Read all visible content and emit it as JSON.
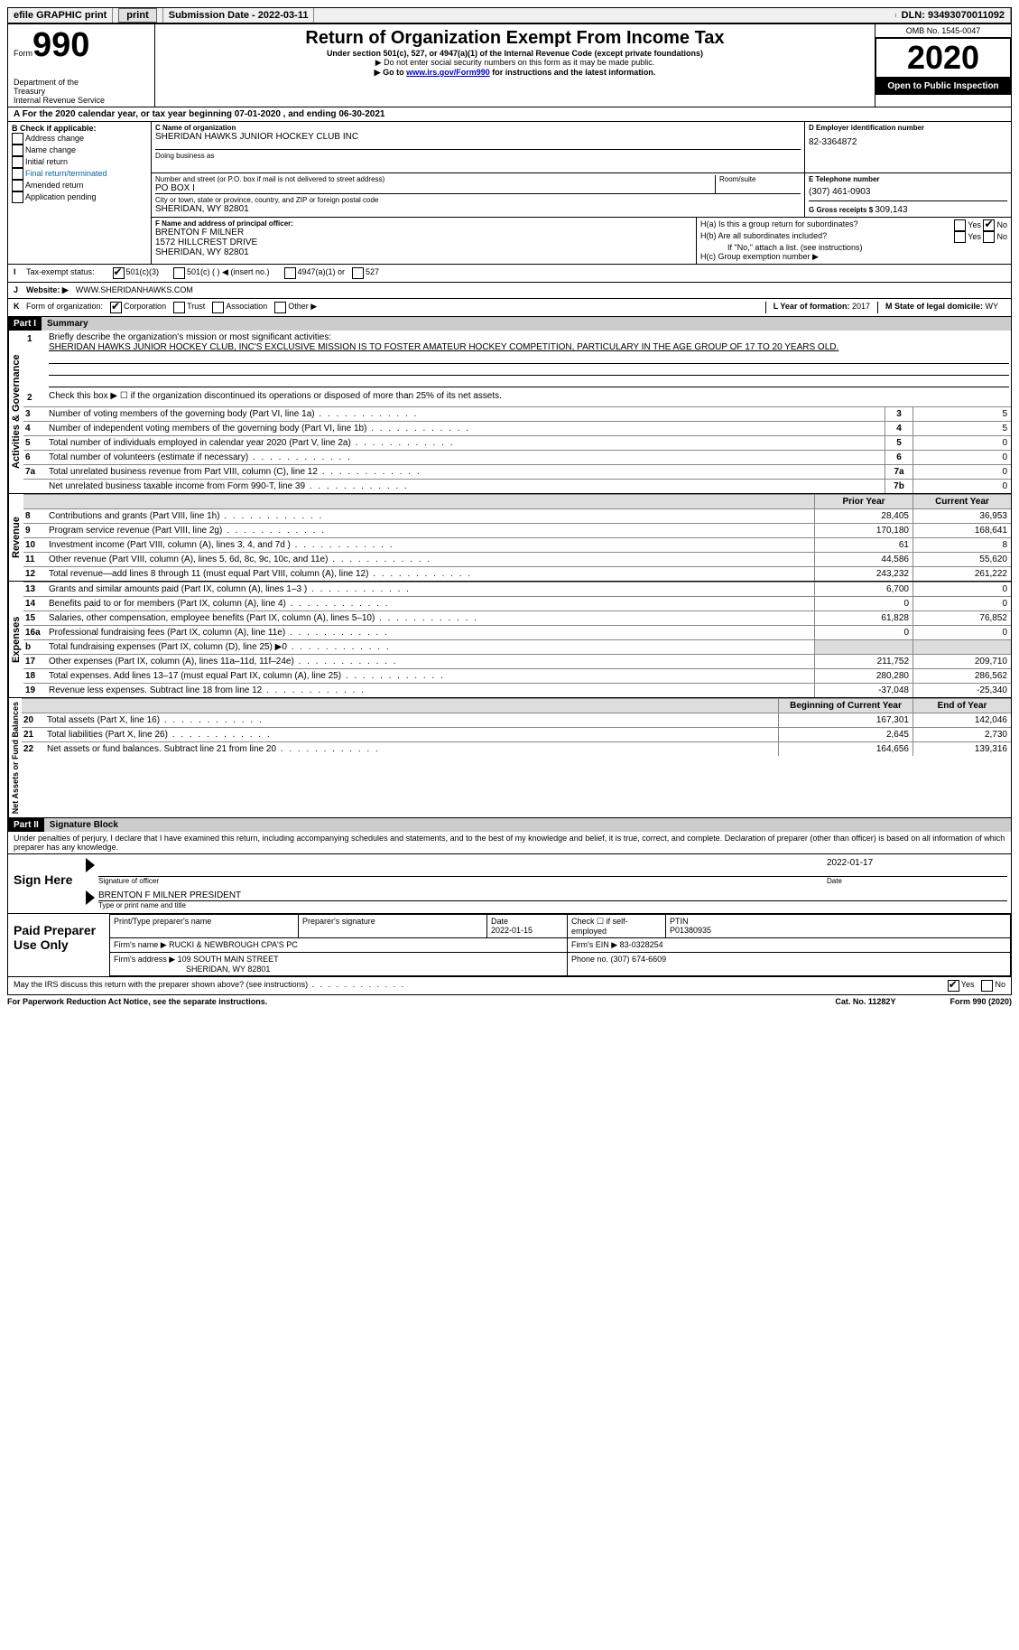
{
  "topbar": {
    "efile": "efile GRAPHIC print",
    "submission_label": "Submission Date - ",
    "submission_date": "2022-03-11",
    "dln_label": "DLN: ",
    "dln": "93493070011092"
  },
  "header": {
    "form_word": "Form",
    "form_num": "990",
    "dept1": "Department of the",
    "dept2": "Treasury",
    "dept3": "Internal Revenue Service",
    "title": "Return of Organization Exempt From Income Tax",
    "subtitle": "Under section 501(c), 527, or 4947(a)(1) of the Internal Revenue Code (except private foundations)",
    "note1": "▶ Do not enter social security numbers on this form as it may be made public.",
    "note2_pre": "▶ Go to ",
    "note2_link": "www.irs.gov/Form990",
    "note2_post": " for instructions and the latest information.",
    "omb": "OMB No. 1545-0047",
    "year": "2020",
    "open": "Open to Public Inspection"
  },
  "sectionA": {
    "line": "A For the 2020 calendar year, or tax year beginning 07-01-2020    , and ending 06-30-2021",
    "b_label": "B Check if applicable:",
    "b_opts": [
      "Address change",
      "Name change",
      "Initial return",
      "Final return/terminated",
      "Amended return",
      "Application pending"
    ],
    "c_label": "C Name of organization",
    "c_name": "SHERIDAN HAWKS JUNIOR HOCKEY CLUB INC",
    "dba_label": "Doing business as",
    "addr_label": "Number and street (or P.O. box if mail is not delivered to street address)",
    "addr": "PO BOX I",
    "room_label": "Room/suite",
    "city_label": "City or town, state or province, country, and ZIP or foreign postal code",
    "city": "SHERIDAN, WY  82801",
    "d_label": "D Employer identification number",
    "d_val": "82-3364872",
    "e_label": "E Telephone number",
    "e_val": "(307) 461-0903",
    "g_label": "G Gross receipts $ ",
    "g_val": "309,143",
    "f_label": "F  Name and address of principal officer:",
    "f_name": "BRENTON F MILNER",
    "f_addr1": "1572 HILLCREST DRIVE",
    "f_addr2": "SHERIDAN, WY  82801",
    "ha_label": "H(a)  Is this a group return for subordinates?",
    "hb_label": "H(b)  Are all subordinates included?",
    "hb_note": "If \"No,\" attach a list. (see instructions)",
    "hc_label": "H(c)  Group exemption number ▶",
    "yes": "Yes",
    "no": "No"
  },
  "sectionI": {
    "label": "I",
    "text": "Tax-exempt status:",
    "o1": "501(c)(3)",
    "o2": "501(c) (   ) ◀ (insert no.)",
    "o3": "4947(a)(1) or",
    "o4": "527"
  },
  "sectionJ": {
    "label": "J",
    "text": "Website: ▶",
    "val": "WWW.SHERIDANHAWKS.COM"
  },
  "sectionK": {
    "label": "K",
    "text": "Form of organization:",
    "o1": "Corporation",
    "o2": "Trust",
    "o3": "Association",
    "o4": "Other ▶",
    "l_label": "L Year of formation: ",
    "l_val": "2017",
    "m_label": "M State of legal domicile: ",
    "m_val": "WY"
  },
  "part1": {
    "header": "Part I",
    "title": "Summary",
    "q1_label": "1",
    "q1_text": "Briefly describe the organization's mission or most significant activities:",
    "q1_val": "SHERIDAN HAWKS JUNIOR HOCKEY CLUB, INC'S EXCLUSIVE MISSION IS TO FOSTER AMATEUR HOCKEY COMPETITION, PARTICULARY IN THE AGE GROUP OF 17 TO 20 YEARS OLD.",
    "q2_label": "2",
    "q2_text": "Check this box ▶ ☐  if the organization discontinued its operations or disposed of more than 25% of its net assets.",
    "vlabel1": "Activities & Governance",
    "vlabel2": "Revenue",
    "vlabel3": "Expenses",
    "vlabel4": "Net Assets or Fund Balances",
    "col_prior": "Prior Year",
    "col_current": "Current Year",
    "col_begin": "Beginning of Current Year",
    "col_end": "End of Year",
    "lines_gov": [
      {
        "n": "3",
        "t": "Number of voting members of the governing body (Part VI, line 1a)",
        "k": "3",
        "v": "5"
      },
      {
        "n": "4",
        "t": "Number of independent voting members of the governing body (Part VI, line 1b)",
        "k": "4",
        "v": "5"
      },
      {
        "n": "5",
        "t": "Total number of individuals employed in calendar year 2020 (Part V, line 2a)",
        "k": "5",
        "v": "0"
      },
      {
        "n": "6",
        "t": "Total number of volunteers (estimate if necessary)",
        "k": "6",
        "v": "0"
      },
      {
        "n": "7a",
        "t": "Total unrelated business revenue from Part VIII, column (C), line 12",
        "k": "7a",
        "v": "0"
      },
      {
        "n": "",
        "t": "Net unrelated business taxable income from Form 990-T, line 39",
        "k": "7b",
        "v": "0"
      }
    ],
    "lines_rev": [
      {
        "n": "8",
        "t": "Contributions and grants (Part VIII, line 1h)",
        "p": "28,405",
        "c": "36,953"
      },
      {
        "n": "9",
        "t": "Program service revenue (Part VIII, line 2g)",
        "p": "170,180",
        "c": "168,641"
      },
      {
        "n": "10",
        "t": "Investment income (Part VIII, column (A), lines 3, 4, and 7d )",
        "p": "61",
        "c": "8"
      },
      {
        "n": "11",
        "t": "Other revenue (Part VIII, column (A), lines 5, 6d, 8c, 9c, 10c, and 11e)",
        "p": "44,586",
        "c": "55,620"
      },
      {
        "n": "12",
        "t": "Total revenue—add lines 8 through 11 (must equal Part VIII, column (A), line 12)",
        "p": "243,232",
        "c": "261,222"
      }
    ],
    "lines_exp": [
      {
        "n": "13",
        "t": "Grants and similar amounts paid (Part IX, column (A), lines 1–3 )",
        "p": "6,700",
        "c": "0"
      },
      {
        "n": "14",
        "t": "Benefits paid to or for members (Part IX, column (A), line 4)",
        "p": "0",
        "c": "0"
      },
      {
        "n": "15",
        "t": "Salaries, other compensation, employee benefits (Part IX, column (A), lines 5–10)",
        "p": "61,828",
        "c": "76,852"
      },
      {
        "n": "16a",
        "t": "Professional fundraising fees (Part IX, column (A), line 11e)",
        "p": "0",
        "c": "0"
      },
      {
        "n": "b",
        "t": "Total fundraising expenses (Part IX, column (D), line 25) ▶0",
        "p": "",
        "c": "",
        "shade": true
      },
      {
        "n": "17",
        "t": "Other expenses (Part IX, column (A), lines 11a–11d, 11f–24e)",
        "p": "211,752",
        "c": "209,710"
      },
      {
        "n": "18",
        "t": "Total expenses. Add lines 13–17 (must equal Part IX, column (A), line 25)",
        "p": "280,280",
        "c": "286,562"
      },
      {
        "n": "19",
        "t": "Revenue less expenses. Subtract line 18 from line 12",
        "p": "-37,048",
        "c": "-25,340"
      }
    ],
    "lines_net": [
      {
        "n": "20",
        "t": "Total assets (Part X, line 16)",
        "p": "167,301",
        "c": "142,046"
      },
      {
        "n": "21",
        "t": "Total liabilities (Part X, line 26)",
        "p": "2,645",
        "c": "2,730"
      },
      {
        "n": "22",
        "t": "Net assets or fund balances. Subtract line 21 from line 20",
        "p": "164,656",
        "c": "139,316"
      }
    ]
  },
  "part2": {
    "header": "Part II",
    "title": "Signature Block",
    "declaration": "Under penalties of perjury, I declare that I have examined this return, including accompanying schedules and statements, and to the best of my knowledge and belief, it is true, correct, and complete. Declaration of preparer (other than officer) is based on all information of which preparer has any knowledge.",
    "sign_here": "Sign Here",
    "sig_of_officer": "Signature of officer",
    "sig_date": "2022-01-17",
    "date_label": "Date",
    "officer_name": "BRENTON F MILNER  PRESIDENT",
    "officer_sub": "Type or print name and title",
    "paid_label": "Paid Preparer Use Only",
    "prep_name_label": "Print/Type preparer's name",
    "prep_sig_label": "Preparer's signature",
    "prep_date_label": "Date",
    "prep_date": "2022-01-15",
    "prep_self": "Check ☐ if self-employed",
    "ptin_label": "PTIN",
    "ptin": "P01380935",
    "firm_name_label": "Firm's name    ▶ ",
    "firm_name": "RUCKI & NEWBROUGH CPA'S PC",
    "firm_ein_label": "Firm's EIN ▶ ",
    "firm_ein": "83-0328254",
    "firm_addr_label": "Firm's address ▶ ",
    "firm_addr1": "109 SOUTH MAIN STREET",
    "firm_addr2": "SHERIDAN, WY  82801",
    "firm_phone_label": "Phone no. ",
    "firm_phone": "(307) 674-6609",
    "discuss": "May the IRS discuss this return with the preparer shown above? (see instructions)"
  },
  "footer": {
    "left": "For Paperwork Reduction Act Notice, see the separate instructions.",
    "mid": "Cat. No. 11282Y",
    "right": "Form 990 (2020)"
  }
}
